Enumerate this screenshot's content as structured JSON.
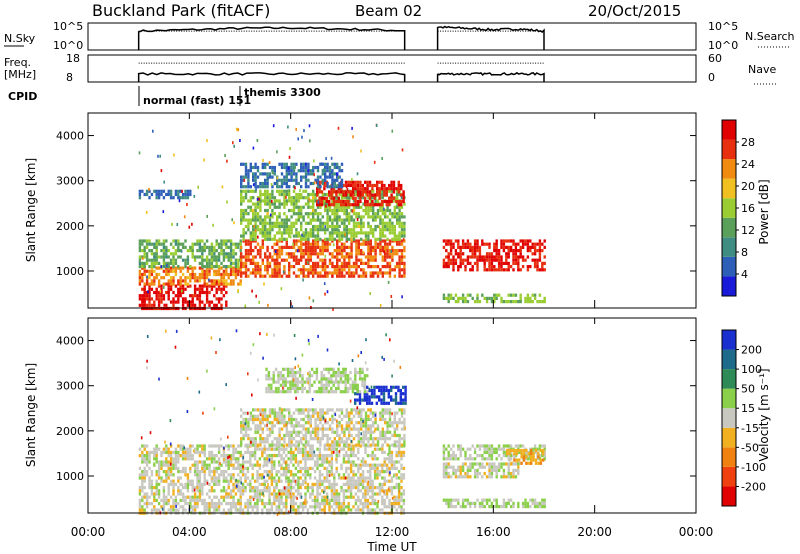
{
  "header": {
    "site": "Buckland Park (fitACF)",
    "beam": "Beam 02",
    "date": "20/Oct/2015"
  },
  "nsky_panel": {
    "left_label": "N.Sky",
    "left_ticks": [
      "10^5",
      "10^0"
    ],
    "right_ticks": [
      "10^5",
      "10^0"
    ],
    "right_label": "N.Search"
  },
  "freq_panel": {
    "left_label_top": "Freq.",
    "left_label_bottom": "[MHz]",
    "left_ticks": [
      "18",
      "8"
    ],
    "right_ticks": [
      "60",
      "0"
    ],
    "right_label": "Nave"
  },
  "cpid": {
    "label": "CPID",
    "modes": [
      {
        "name": "normal (fast) 151",
        "start_hour": 2.0
      },
      {
        "name": "themis 3300",
        "start_hour": 6.0
      }
    ]
  },
  "xaxis": {
    "label": "Time UT",
    "ticks": [
      "00:00",
      "04:00",
      "08:00",
      "12:00",
      "16:00",
      "20:00",
      "00:00"
    ],
    "range_hours": [
      0,
      24
    ]
  },
  "power_panel": {
    "ylabel": "Slant Range [km]",
    "yticks": [
      "1000",
      "2000",
      "3000",
      "4000"
    ],
    "colorbar_label": "Power [dB]",
    "colorbar_ticks": [
      "4",
      "8",
      "12",
      "16",
      "20",
      "24",
      "28"
    ],
    "colors": [
      "#1a1ad9",
      "#2e5fb8",
      "#3f8d82",
      "#5aa05a",
      "#9acd32",
      "#f0c020",
      "#f08a10",
      "#e83010",
      "#e00000"
    ]
  },
  "velocity_panel": {
    "ylabel": "Slant Range [km]",
    "yticks": [
      "1000",
      "2000",
      "3000",
      "4000"
    ],
    "colorbar_label": "Velocity [m s⁻¹]",
    "colorbar_ticks": [
      "200",
      "100",
      "50",
      "15",
      "-15",
      "-50",
      "-100",
      "-200"
    ],
    "colors": [
      "#1a2fd0",
      "#1e6a8a",
      "#2e8b57",
      "#8bd04a",
      "#c8c8c0",
      "#f0b020",
      "#f08010",
      "#f04010",
      "#e00000"
    ]
  },
  "chart_data": [
    {
      "type": "line",
      "title": "N.Sky / N.Search",
      "x_range": [
        0,
        24
      ],
      "segments": [
        {
          "x": [
            2.0,
            4.0,
            6.0,
            8.0,
            10.0,
            12.5
          ],
          "level": [
            0.7,
            0.75,
            0.8,
            0.82,
            0.78,
            0.72
          ]
        },
        {
          "x": [
            13.8,
            15.0,
            16.0,
            17.0,
            18.0
          ],
          "level": [
            0.85,
            0.8,
            0.75,
            0.78,
            0.7
          ]
        }
      ]
    },
    {
      "type": "line",
      "title": "Freq / Nave",
      "x_range": [
        0,
        24
      ],
      "segments": [
        {
          "x": [
            2.0,
            12.5
          ],
          "level": [
            0.3,
            0.3
          ]
        },
        {
          "x": [
            13.8,
            18.0
          ],
          "level": [
            0.3,
            0.3
          ]
        }
      ]
    },
    {
      "type": "heatmap",
      "title": "Power",
      "x_range": [
        0,
        24
      ],
      "ylim": [
        180,
        4500
      ],
      "clim": [
        0,
        30
      ],
      "blobs": [
        {
          "t0": 2.0,
          "t1": 5.5,
          "r0": 200,
          "r1": 700,
          "v": 28
        },
        {
          "t0": 2.0,
          "t1": 6.0,
          "r0": 700,
          "r1": 1100,
          "v": 22
        },
        {
          "t0": 2.0,
          "t1": 6.0,
          "r0": 1100,
          "r1": 1700,
          "v": 12
        },
        {
          "t0": 6.0,
          "t1": 12.5,
          "r0": 900,
          "r1": 1700,
          "v": 24
        },
        {
          "t0": 6.0,
          "t1": 12.5,
          "r0": 1700,
          "r1": 2800,
          "v": 14
        },
        {
          "t0": 9.0,
          "t1": 12.5,
          "r0": 2500,
          "r1": 3000,
          "v": 26
        },
        {
          "t0": 6.0,
          "t1": 10.0,
          "r0": 2900,
          "r1": 3400,
          "v": 6
        },
        {
          "t0": 14.0,
          "t1": 18.0,
          "r0": 1000,
          "r1": 1700,
          "v": 27
        },
        {
          "t0": 14.0,
          "t1": 18.0,
          "r0": 300,
          "r1": 500,
          "v": 14
        },
        {
          "t0": 2.0,
          "t1": 4.0,
          "r0": 2600,
          "r1": 2800,
          "v": 6
        }
      ]
    },
    {
      "type": "heatmap",
      "title": "Velocity",
      "x_range": [
        0,
        24
      ],
      "ylim": [
        180,
        4500
      ],
      "clim": [
        -250,
        250
      ],
      "blobs": [
        {
          "t0": 2.0,
          "t1": 12.5,
          "r0": 200,
          "r1": 1700,
          "v": 0
        },
        {
          "t0": 6.0,
          "t1": 12.5,
          "r0": 1700,
          "r1": 2500,
          "v": 0
        },
        {
          "t0": 10.5,
          "t1": 12.5,
          "r0": 2600,
          "r1": 3000,
          "v": 220
        },
        {
          "t0": 7.0,
          "t1": 11.0,
          "r0": 2900,
          "r1": 3400,
          "v": 30
        },
        {
          "t0": 14.0,
          "t1": 18.0,
          "r0": 1400,
          "r1": 1700,
          "v": 30
        },
        {
          "t0": 16.5,
          "t1": 18.0,
          "r0": 1300,
          "r1": 1600,
          "v": -60
        },
        {
          "t0": 14.0,
          "t1": 17.0,
          "r0": 1000,
          "r1": 1300,
          "v": 0
        },
        {
          "t0": 14.0,
          "t1": 18.0,
          "r0": 300,
          "r1": 500,
          "v": 30
        }
      ]
    }
  ]
}
